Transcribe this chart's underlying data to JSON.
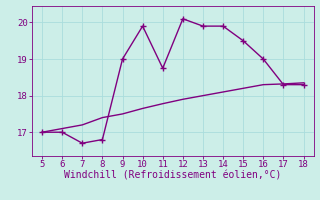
{
  "x_jagged": [
    5,
    6,
    7,
    8,
    9,
    10,
    11,
    12,
    13,
    14,
    15,
    16,
    17,
    18
  ],
  "y_jagged": [
    17.0,
    17.0,
    16.7,
    16.8,
    19.0,
    19.9,
    18.75,
    20.1,
    19.9,
    19.9,
    19.5,
    19.0,
    18.3,
    18.3
  ],
  "x_smooth": [
    5,
    6,
    7,
    8,
    9,
    10,
    11,
    12,
    13,
    14,
    15,
    16,
    17,
    18
  ],
  "y_smooth": [
    17.0,
    17.1,
    17.2,
    17.4,
    17.5,
    17.65,
    17.78,
    17.9,
    18.0,
    18.1,
    18.2,
    18.3,
    18.32,
    18.35
  ],
  "line_color": "#800080",
  "bg_color": "#cceee8",
  "grid_color": "#aadddd",
  "xlabel": "Windchill (Refroidissement éolien,°C)",
  "xlim": [
    4.5,
    18.5
  ],
  "ylim": [
    16.35,
    20.45
  ],
  "xticks": [
    5,
    6,
    7,
    8,
    9,
    10,
    11,
    12,
    13,
    14,
    15,
    16,
    17,
    18
  ],
  "yticks": [
    17,
    18,
    19,
    20
  ],
  "marker": "+",
  "markersize": 4,
  "linewidth": 1.0,
  "tick_fontsize": 6.5,
  "xlabel_fontsize": 7.0
}
